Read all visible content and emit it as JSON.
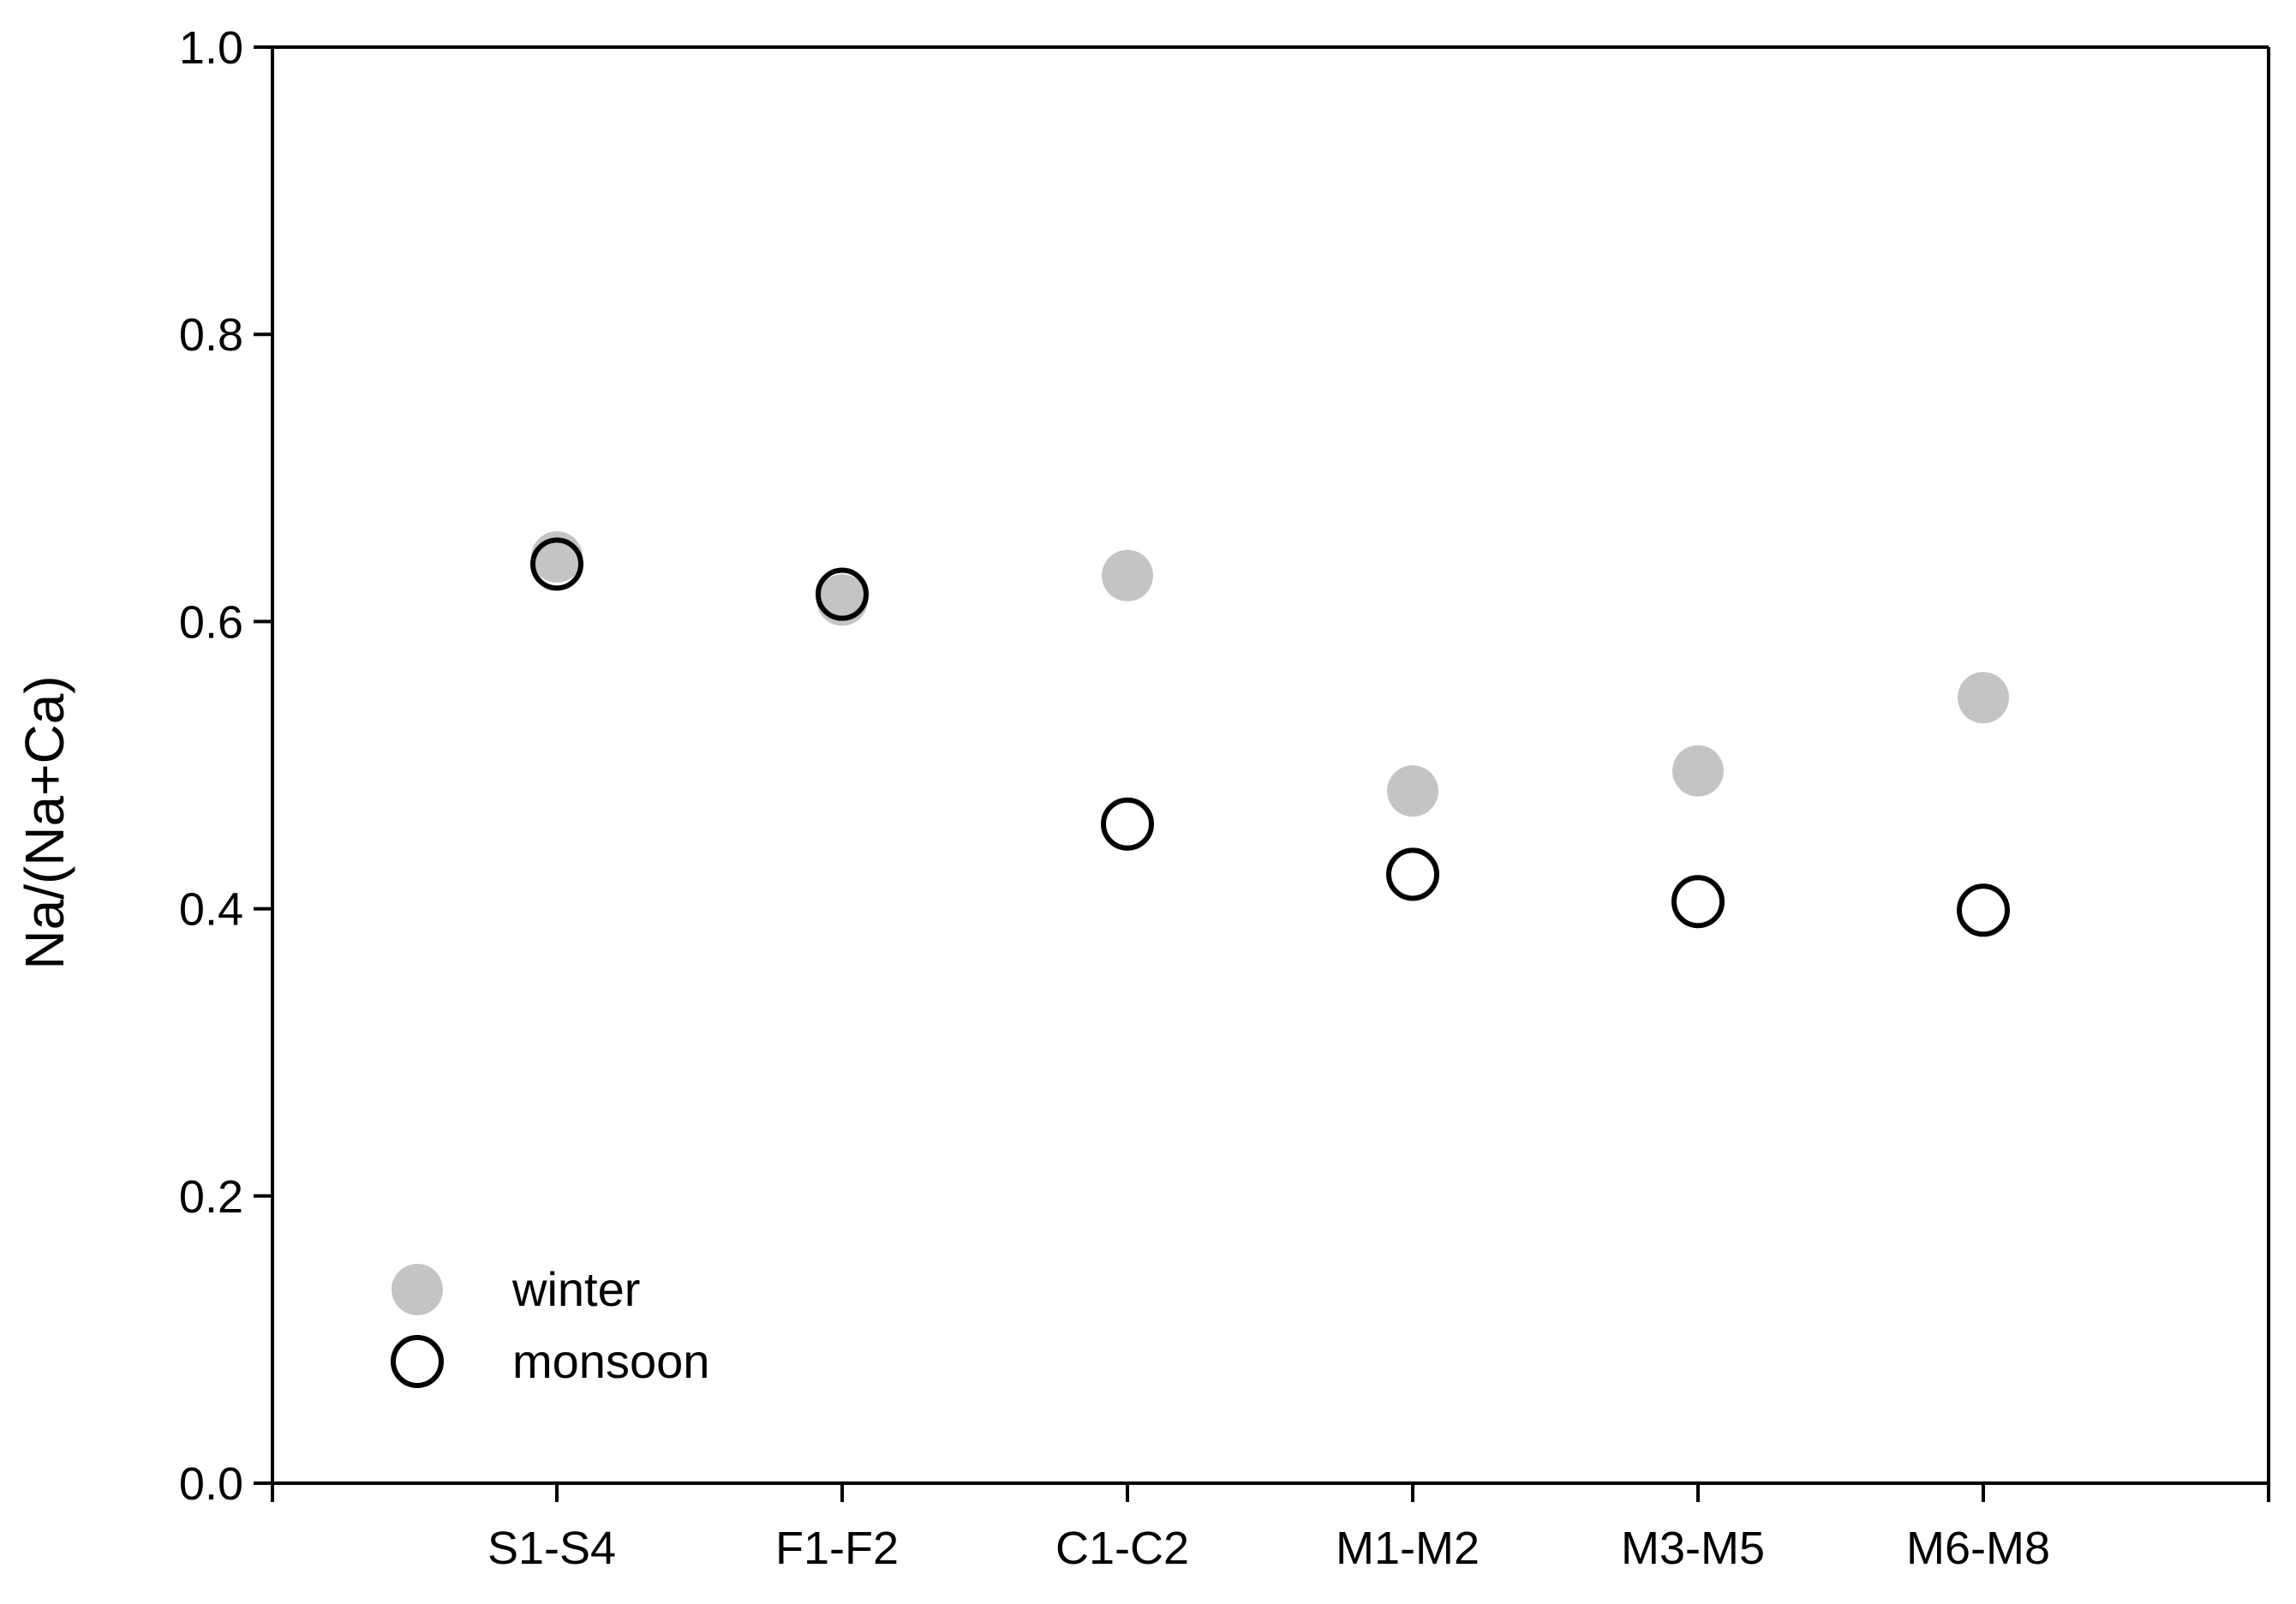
{
  "chart_data": {
    "type": "scatter",
    "title": "",
    "xlabel": "",
    "ylabel": "Na/(Na+Ca)",
    "categories": [
      "S1-S4",
      "F1-F2",
      "C1-C2",
      "M1-M2",
      "M3-M5",
      "M6-M8"
    ],
    "ylim": [
      0.0,
      1.0
    ],
    "yticks": [
      "0.0",
      "0.2",
      "0.4",
      "0.6",
      "0.8",
      "1.0"
    ],
    "grid": false,
    "legend_position": "bottom-left",
    "series": [
      {
        "name": "winter",
        "marker": "filled-circle",
        "color": "#c4c4c4",
        "values": [
          0.645,
          0.615,
          0.632,
          0.482,
          0.496,
          0.547
        ]
      },
      {
        "name": "monsoon",
        "marker": "open-circle",
        "color": "#000000",
        "values": [
          0.64,
          0.619,
          0.459,
          0.424,
          0.405,
          0.399
        ]
      }
    ]
  }
}
